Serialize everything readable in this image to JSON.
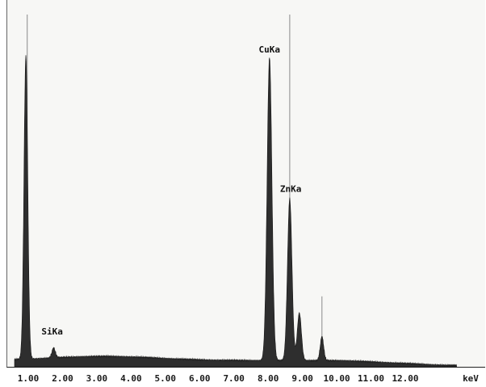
{
  "chart_data": {
    "type": "area",
    "xlabel": "keV",
    "xlim": [
      0.6,
      13.5
    ],
    "ylim": [
      0,
      1
    ],
    "ticks": [
      "1.00",
      "2.00",
      "3.00",
      "4.00",
      "5.00",
      "6.00",
      "7.00",
      "8.00",
      "9.00",
      "10.00",
      "11.00",
      "12.00"
    ],
    "tick_values": [
      1,
      2,
      3,
      4,
      5,
      6,
      7,
      8,
      9,
      10,
      11,
      12
    ],
    "peaks": [
      {
        "energy": 0.93,
        "intensity": 0.86,
        "sigma": 0.055
      },
      {
        "energy": 1.74,
        "intensity": 0.028,
        "sigma": 0.05
      },
      {
        "energy": 8.04,
        "intensity": 0.86,
        "sigma": 0.07
      },
      {
        "energy": 8.63,
        "intensity": 0.46,
        "sigma": 0.065
      },
      {
        "energy": 8.91,
        "intensity": 0.135,
        "sigma": 0.06
      },
      {
        "energy": 9.57,
        "intensity": 0.068,
        "sigma": 0.05
      }
    ],
    "background_level": 0.018,
    "annotations": [
      {
        "text": "SiKa",
        "energy": 1.74
      },
      {
        "text": "CuKa",
        "energy": 8.04
      },
      {
        "text": "ZnKa",
        "energy": 8.63
      }
    ],
    "marker_lines": [
      {
        "energy": 0.97,
        "height": 1.0
      },
      {
        "energy": 8.63,
        "height": 1.0
      },
      {
        "energy": 9.57,
        "height": 0.2
      }
    ]
  }
}
